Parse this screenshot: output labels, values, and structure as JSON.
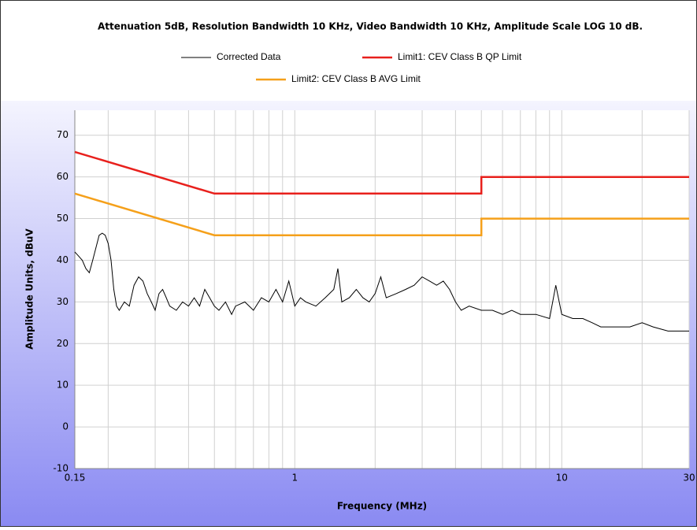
{
  "chart_data": {
    "type": "line",
    "title": "Attenuation 5dB, Resolution Bandwidth 10 KHz, Video Bandwidth 10 KHz, Amplitude Scale LOG 10 dB.",
    "x_label": "Frequency (MHz)",
    "y_label": "Amplitude Units, dBuV",
    "xscale": "log",
    "xlim": [
      0.15,
      30
    ],
    "ylim": [
      -10,
      76
    ],
    "xticks": [
      0.15,
      1,
      10,
      30
    ],
    "xminorticks": [
      0.2,
      0.3,
      0.4,
      0.5,
      0.6,
      0.7,
      0.8,
      0.9,
      2,
      3,
      4,
      5,
      6,
      7,
      8,
      9,
      20
    ],
    "yticks": [
      -10,
      0,
      10,
      20,
      30,
      40,
      50,
      60,
      70
    ],
    "grid": true,
    "series": [
      {
        "name": "Corrected Data",
        "color": "#000000",
        "x": [
          0.15,
          0.155,
          0.16,
          0.165,
          0.17,
          0.175,
          0.18,
          0.185,
          0.19,
          0.195,
          0.2,
          0.205,
          0.21,
          0.215,
          0.22,
          0.23,
          0.24,
          0.25,
          0.26,
          0.27,
          0.28,
          0.29,
          0.3,
          0.31,
          0.32,
          0.33,
          0.34,
          0.36,
          0.38,
          0.4,
          0.42,
          0.44,
          0.46,
          0.48,
          0.5,
          0.52,
          0.55,
          0.58,
          0.6,
          0.65,
          0.7,
          0.75,
          0.8,
          0.85,
          0.9,
          0.95,
          1.0,
          1.05,
          1.1,
          1.2,
          1.3,
          1.4,
          1.45,
          1.5,
          1.6,
          1.7,
          1.8,
          1.9,
          2.0,
          2.1,
          2.2,
          2.4,
          2.6,
          2.8,
          3.0,
          3.2,
          3.4,
          3.6,
          3.8,
          4.0,
          4.2,
          4.5,
          5.0,
          5.5,
          6.0,
          6.5,
          7.0,
          8.0,
          9.0,
          9.5,
          10,
          11,
          12,
          13,
          14,
          16,
          18,
          20,
          22,
          25,
          28,
          30
        ],
        "values": [
          42,
          41,
          40,
          38,
          37,
          40,
          43,
          46,
          46.5,
          46,
          44,
          40,
          33,
          29,
          28,
          30,
          29,
          34,
          36,
          35,
          32,
          30,
          28,
          32,
          33,
          31,
          29,
          28,
          30,
          29,
          31,
          29,
          33,
          31,
          29,
          28,
          30,
          27,
          29,
          30,
          28,
          31,
          30,
          33,
          30,
          35,
          29,
          31,
          30,
          29,
          31,
          33,
          38,
          30,
          31,
          33,
          31,
          30,
          32,
          36,
          31,
          32,
          33,
          34,
          36,
          35,
          34,
          35,
          33,
          30,
          28,
          29,
          28,
          28,
          27,
          28,
          27,
          27,
          26,
          34,
          27,
          26,
          26,
          25,
          24,
          24,
          24,
          25,
          24,
          23,
          23,
          23
        ]
      },
      {
        "name": "Limit1: CEV Class B QP Limit",
        "color": "#e8201c",
        "x": [
          0.15,
          0.5,
          5,
          5,
          30
        ],
        "values": [
          66,
          56,
          56,
          60,
          60
        ]
      },
      {
        "name": "Limit2: CEV Class B AVG Limit",
        "color": "#f5a01a",
        "x": [
          0.15,
          0.5,
          5,
          5,
          30
        ],
        "values": [
          56,
          46,
          46,
          50,
          50
        ]
      }
    ]
  }
}
